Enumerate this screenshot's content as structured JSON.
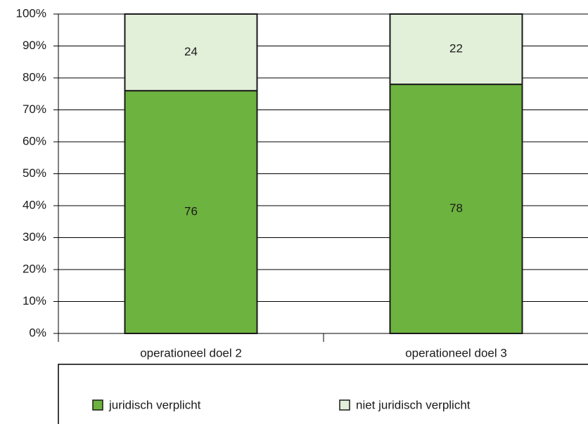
{
  "chart_data": {
    "type": "stacked_bar",
    "categories": [
      "operationeel doel 2",
      "operationeel doel 3"
    ],
    "series": [
      {
        "name": "juridisch verplicht",
        "color": "#6db33f",
        "values": [
          76,
          78
        ]
      },
      {
        "name": "niet juridisch verplicht",
        "color": "#e2efd9",
        "values": [
          24,
          22
        ]
      }
    ],
    "ylim": [
      0,
      100
    ],
    "yticks": [
      {
        "value": 0,
        "label": "0%"
      },
      {
        "value": 10,
        "label": "10%"
      },
      {
        "value": 20,
        "label": "20%"
      },
      {
        "value": 30,
        "label": "30%"
      },
      {
        "value": 40,
        "label": "40%"
      },
      {
        "value": 50,
        "label": "50%"
      },
      {
        "value": 60,
        "label": "60%"
      },
      {
        "value": 70,
        "label": "70%"
      },
      {
        "value": 80,
        "label": "80%"
      },
      {
        "value": 90,
        "label": "90%"
      },
      {
        "value": 100,
        "label": "100%"
      }
    ],
    "grid": true,
    "legend": "bottom"
  }
}
